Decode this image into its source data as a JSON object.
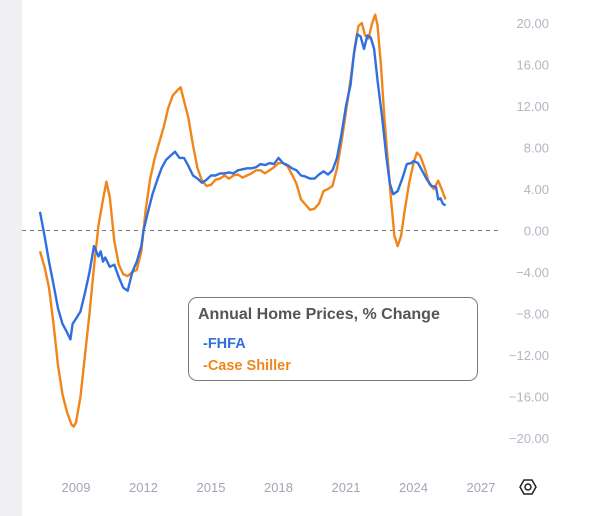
{
  "chart_data": {
    "type": "line",
    "x_ticks": [
      "2009",
      "2012",
      "2015",
      "2018",
      "2021",
      "2024",
      "2027"
    ],
    "y_ticks": [
      "20.00",
      "16.00",
      "12.00",
      "8.00",
      "4.00",
      "0.00",
      "−4.00",
      "−8.00",
      "−12.00",
      "−16.00",
      "−20.00"
    ],
    "ylim": [
      -20,
      20
    ],
    "xlim": [
      2007.3,
      2027
    ],
    "zero_line": "dashed",
    "legend": {
      "title": "Annual Home Prices, % Change",
      "placement": "bottom-center"
    },
    "series": [
      {
        "name": "-FHFA",
        "color": "#2f6fe0",
        "points": [
          [
            2007.4,
            1.8
          ],
          [
            2007.6,
            -0.5
          ],
          [
            2007.8,
            -3.0
          ],
          [
            2008.0,
            -5.2
          ],
          [
            2008.2,
            -7.5
          ],
          [
            2008.4,
            -9.0
          ],
          [
            2008.6,
            -9.8
          ],
          [
            2008.75,
            -10.5
          ],
          [
            2008.85,
            -9.0
          ],
          [
            2009.0,
            -8.5
          ],
          [
            2009.2,
            -7.8
          ],
          [
            2009.4,
            -6.0
          ],
          [
            2009.6,
            -4.0
          ],
          [
            2009.8,
            -1.5
          ],
          [
            2010.0,
            -2.5
          ],
          [
            2010.1,
            -2.0
          ],
          [
            2010.2,
            -3.0
          ],
          [
            2010.3,
            -2.6
          ],
          [
            2010.5,
            -3.5
          ],
          [
            2010.7,
            -3.3
          ],
          [
            2010.9,
            -4.5
          ],
          [
            2011.1,
            -5.5
          ],
          [
            2011.3,
            -5.8
          ],
          [
            2011.5,
            -4.0
          ],
          [
            2011.7,
            -3.0
          ],
          [
            2011.9,
            -1.5
          ],
          [
            2012.0,
            0.0
          ],
          [
            2012.2,
            1.8
          ],
          [
            2012.4,
            3.5
          ],
          [
            2012.6,
            4.8
          ],
          [
            2012.8,
            6.0
          ],
          [
            2013.0,
            6.8
          ],
          [
            2013.2,
            7.2
          ],
          [
            2013.4,
            7.6
          ],
          [
            2013.6,
            7.0
          ],
          [
            2013.8,
            7.0
          ],
          [
            2014.0,
            6.2
          ],
          [
            2014.2,
            5.3
          ],
          [
            2014.4,
            5.0
          ],
          [
            2014.6,
            4.6
          ],
          [
            2014.8,
            4.9
          ],
          [
            2015.0,
            5.3
          ],
          [
            2015.2,
            5.3
          ],
          [
            2015.4,
            5.5
          ],
          [
            2015.6,
            5.5
          ],
          [
            2015.8,
            5.6
          ],
          [
            2016.0,
            5.5
          ],
          [
            2016.2,
            5.8
          ],
          [
            2016.4,
            5.9
          ],
          [
            2016.6,
            6.0
          ],
          [
            2016.8,
            6.0
          ],
          [
            2017.0,
            6.1
          ],
          [
            2017.2,
            6.4
          ],
          [
            2017.4,
            6.3
          ],
          [
            2017.6,
            6.5
          ],
          [
            2017.8,
            6.4
          ],
          [
            2018.0,
            7.0
          ],
          [
            2018.2,
            6.5
          ],
          [
            2018.4,
            6.3
          ],
          [
            2018.6,
            6.0
          ],
          [
            2018.8,
            5.8
          ],
          [
            2019.0,
            5.3
          ],
          [
            2019.2,
            5.2
          ],
          [
            2019.4,
            5.0
          ],
          [
            2019.6,
            5.0
          ],
          [
            2019.8,
            5.4
          ],
          [
            2020.0,
            5.7
          ],
          [
            2020.2,
            5.4
          ],
          [
            2020.4,
            5.8
          ],
          [
            2020.6,
            7.0
          ],
          [
            2020.8,
            9.3
          ],
          [
            2021.0,
            12.0
          ],
          [
            2021.2,
            14.0
          ],
          [
            2021.35,
            17.0
          ],
          [
            2021.5,
            18.9
          ],
          [
            2021.65,
            18.7
          ],
          [
            2021.8,
            17.5
          ],
          [
            2021.95,
            18.8
          ],
          [
            2022.1,
            18.6
          ],
          [
            2022.25,
            17.5
          ],
          [
            2022.4,
            14.5
          ],
          [
            2022.6,
            11.0
          ],
          [
            2022.8,
            7.0
          ],
          [
            2022.95,
            4.5
          ],
          [
            2023.1,
            3.5
          ],
          [
            2023.3,
            3.8
          ],
          [
            2023.5,
            5.0
          ],
          [
            2023.7,
            6.4
          ],
          [
            2023.9,
            6.5
          ],
          [
            2024.0,
            6.7
          ],
          [
            2024.2,
            6.5
          ],
          [
            2024.4,
            5.7
          ],
          [
            2024.6,
            4.9
          ],
          [
            2024.8,
            4.3
          ],
          [
            2025.0,
            4.2
          ],
          [
            2025.1,
            3.0
          ],
          [
            2025.2,
            3.1
          ],
          [
            2025.3,
            2.6
          ],
          [
            2025.42,
            2.4
          ]
        ]
      },
      {
        "name": "-Case Shiller",
        "color": "#f0861a",
        "points": [
          [
            2007.4,
            -2.0
          ],
          [
            2007.6,
            -3.5
          ],
          [
            2007.8,
            -5.5
          ],
          [
            2008.0,
            -9.0
          ],
          [
            2008.2,
            -13.0
          ],
          [
            2008.4,
            -15.8
          ],
          [
            2008.6,
            -17.5
          ],
          [
            2008.8,
            -18.7
          ],
          [
            2008.9,
            -18.9
          ],
          [
            2009.0,
            -18.5
          ],
          [
            2009.2,
            -16.0
          ],
          [
            2009.4,
            -12.0
          ],
          [
            2009.6,
            -8.0
          ],
          [
            2009.8,
            -3.5
          ],
          [
            2010.0,
            0.5
          ],
          [
            2010.2,
            3.0
          ],
          [
            2010.35,
            4.7
          ],
          [
            2010.5,
            3.2
          ],
          [
            2010.7,
            -1.0
          ],
          [
            2010.9,
            -3.3
          ],
          [
            2011.1,
            -4.2
          ],
          [
            2011.3,
            -4.4
          ],
          [
            2011.5,
            -4.0
          ],
          [
            2011.7,
            -3.8
          ],
          [
            2011.9,
            -2.0
          ],
          [
            2012.1,
            2.0
          ],
          [
            2012.3,
            5.0
          ],
          [
            2012.5,
            7.0
          ],
          [
            2012.7,
            8.5
          ],
          [
            2012.9,
            10.0
          ],
          [
            2013.1,
            11.8
          ],
          [
            2013.3,
            13.0
          ],
          [
            2013.5,
            13.5
          ],
          [
            2013.65,
            13.8
          ],
          [
            2013.8,
            12.5
          ],
          [
            2014.0,
            10.8
          ],
          [
            2014.2,
            8.2
          ],
          [
            2014.4,
            6.0
          ],
          [
            2014.6,
            4.8
          ],
          [
            2014.8,
            4.3
          ],
          [
            2015.0,
            4.4
          ],
          [
            2015.2,
            4.9
          ],
          [
            2015.4,
            5.0
          ],
          [
            2015.6,
            5.3
          ],
          [
            2015.8,
            5.0
          ],
          [
            2016.0,
            5.3
          ],
          [
            2016.2,
            5.4
          ],
          [
            2016.4,
            5.1
          ],
          [
            2016.6,
            5.3
          ],
          [
            2016.8,
            5.5
          ],
          [
            2017.0,
            5.8
          ],
          [
            2017.2,
            5.8
          ],
          [
            2017.4,
            5.5
          ],
          [
            2017.6,
            5.8
          ],
          [
            2017.8,
            6.1
          ],
          [
            2018.0,
            6.5
          ],
          [
            2018.2,
            6.5
          ],
          [
            2018.4,
            6.2
          ],
          [
            2018.6,
            5.4
          ],
          [
            2018.8,
            4.5
          ],
          [
            2019.0,
            3.0
          ],
          [
            2019.2,
            2.5
          ],
          [
            2019.4,
            2.0
          ],
          [
            2019.6,
            2.1
          ],
          [
            2019.8,
            2.6
          ],
          [
            2020.0,
            3.8
          ],
          [
            2020.2,
            4.0
          ],
          [
            2020.4,
            4.3
          ],
          [
            2020.6,
            6.0
          ],
          [
            2020.8,
            8.5
          ],
          [
            2021.0,
            11.5
          ],
          [
            2021.2,
            14.5
          ],
          [
            2021.4,
            17.8
          ],
          [
            2021.55,
            19.7
          ],
          [
            2021.7,
            20.0
          ],
          [
            2021.85,
            18.8
          ],
          [
            2022.0,
            18.5
          ],
          [
            2022.15,
            19.9
          ],
          [
            2022.3,
            20.8
          ],
          [
            2022.4,
            19.8
          ],
          [
            2022.55,
            16.0
          ],
          [
            2022.7,
            11.0
          ],
          [
            2022.85,
            7.0
          ],
          [
            2023.0,
            3.0
          ],
          [
            2023.15,
            -0.5
          ],
          [
            2023.3,
            -1.5
          ],
          [
            2023.45,
            -0.5
          ],
          [
            2023.6,
            1.8
          ],
          [
            2023.8,
            4.5
          ],
          [
            2024.0,
            6.5
          ],
          [
            2024.15,
            7.5
          ],
          [
            2024.3,
            7.2
          ],
          [
            2024.5,
            6.0
          ],
          [
            2024.7,
            4.5
          ],
          [
            2024.9,
            4.0
          ],
          [
            2025.1,
            4.8
          ],
          [
            2025.25,
            4.0
          ],
          [
            2025.42,
            3.0
          ]
        ]
      }
    ]
  },
  "icons": {
    "settings": "gear-icon"
  }
}
